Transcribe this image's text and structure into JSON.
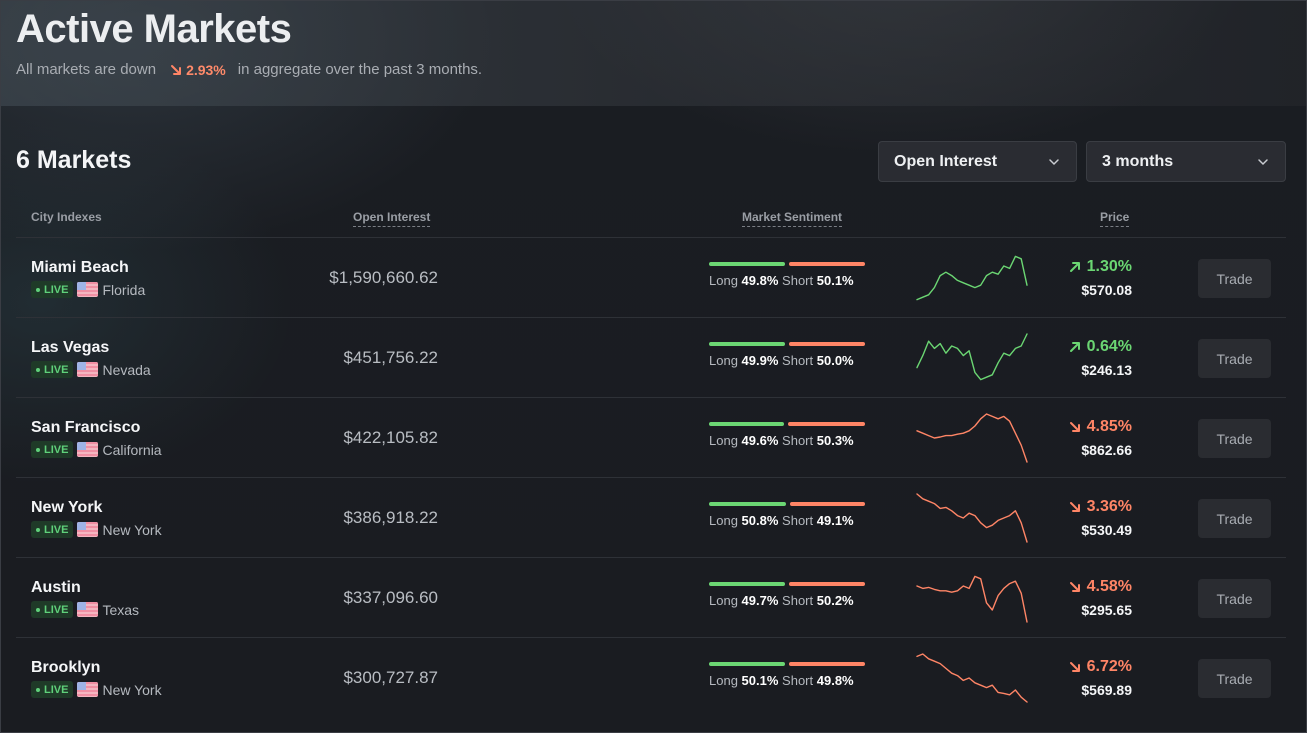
{
  "hero": {
    "title": "Active Markets",
    "subtitle_prefix": "All markets are down",
    "aggregate_change": "2.93%",
    "subtitle_suffix": "in aggregate over the past 3 months.",
    "down_color": "#ff8566"
  },
  "markets_title": "6 Markets",
  "filters": {
    "metric": "Open Interest",
    "period": "3 months"
  },
  "columns": {
    "city": "City Indexes",
    "open_interest": "Open Interest",
    "sentiment": "Market Sentiment",
    "price": "Price"
  },
  "colors": {
    "up": "#6bd673",
    "down": "#ff8566",
    "live_bg": "#1f3a28"
  },
  "live_label": "LIVE",
  "long_label": "Long",
  "short_label": "Short",
  "trade_label": "Trade",
  "markets": [
    {
      "city": "Miami Beach",
      "state": "Florida",
      "open_interest": "$1,590,660.62",
      "long": "49.8%",
      "short": "50.1%",
      "long_frac": 0.498,
      "direction": "up",
      "change": "1.30%",
      "price": "$570.08",
      "trend": [
        0.05,
        0.1,
        0.15,
        0.3,
        0.55,
        0.62,
        0.55,
        0.45,
        0.4,
        0.35,
        0.3,
        0.35,
        0.55,
        0.62,
        0.58,
        0.75,
        0.7,
        0.95,
        0.9,
        0.35
      ]
    },
    {
      "city": "Las Vegas",
      "state": "Nevada",
      "open_interest": "$451,756.22",
      "long": "49.9%",
      "short": "50.0%",
      "long_frac": 0.499,
      "direction": "up",
      "change": "0.64%",
      "price": "$246.13",
      "trend": [
        0.3,
        0.55,
        0.85,
        0.7,
        0.8,
        0.6,
        0.75,
        0.7,
        0.55,
        0.65,
        0.2,
        0.05,
        0.1,
        0.15,
        0.4,
        0.6,
        0.55,
        0.7,
        0.75,
        1.0
      ]
    },
    {
      "city": "San Francisco",
      "state": "California",
      "open_interest": "$422,105.82",
      "long": "49.6%",
      "short": "50.3%",
      "long_frac": 0.496,
      "direction": "down",
      "change": "4.85%",
      "price": "$862.66",
      "trend": [
        0.65,
        0.6,
        0.55,
        0.5,
        0.52,
        0.55,
        0.55,
        0.58,
        0.6,
        0.65,
        0.75,
        0.9,
        1.0,
        0.95,
        0.9,
        0.95,
        0.85,
        0.6,
        0.35,
        0.0
      ]
    },
    {
      "city": "New York",
      "state": "New York",
      "open_interest": "$386,918.22",
      "long": "50.8%",
      "short": "49.1%",
      "long_frac": 0.508,
      "direction": "down",
      "change": "3.36%",
      "price": "$530.49",
      "trend": [
        1.0,
        0.9,
        0.85,
        0.8,
        0.7,
        0.72,
        0.65,
        0.55,
        0.5,
        0.6,
        0.55,
        0.4,
        0.3,
        0.35,
        0.45,
        0.5,
        0.55,
        0.65,
        0.4,
        0.0
      ]
    },
    {
      "city": "Austin",
      "state": "Texas",
      "open_interest": "$337,096.60",
      "long": "49.7%",
      "short": "50.2%",
      "long_frac": 0.497,
      "direction": "down",
      "change": "4.58%",
      "price": "$295.65",
      "trend": [
        0.75,
        0.7,
        0.72,
        0.68,
        0.65,
        0.65,
        0.62,
        0.65,
        0.75,
        0.7,
        0.95,
        0.9,
        0.4,
        0.25,
        0.55,
        0.7,
        0.8,
        0.85,
        0.6,
        0.0
      ]
    },
    {
      "city": "Brooklyn",
      "state": "New York",
      "open_interest": "$300,727.87",
      "long": "50.1%",
      "short": "49.8%",
      "long_frac": 0.501,
      "direction": "down",
      "change": "6.72%",
      "price": "$569.89",
      "trend": [
        0.95,
        1.0,
        0.9,
        0.85,
        0.8,
        0.7,
        0.6,
        0.55,
        0.45,
        0.5,
        0.4,
        0.35,
        0.3,
        0.35,
        0.2,
        0.18,
        0.15,
        0.25,
        0.1,
        0.0
      ]
    }
  ]
}
